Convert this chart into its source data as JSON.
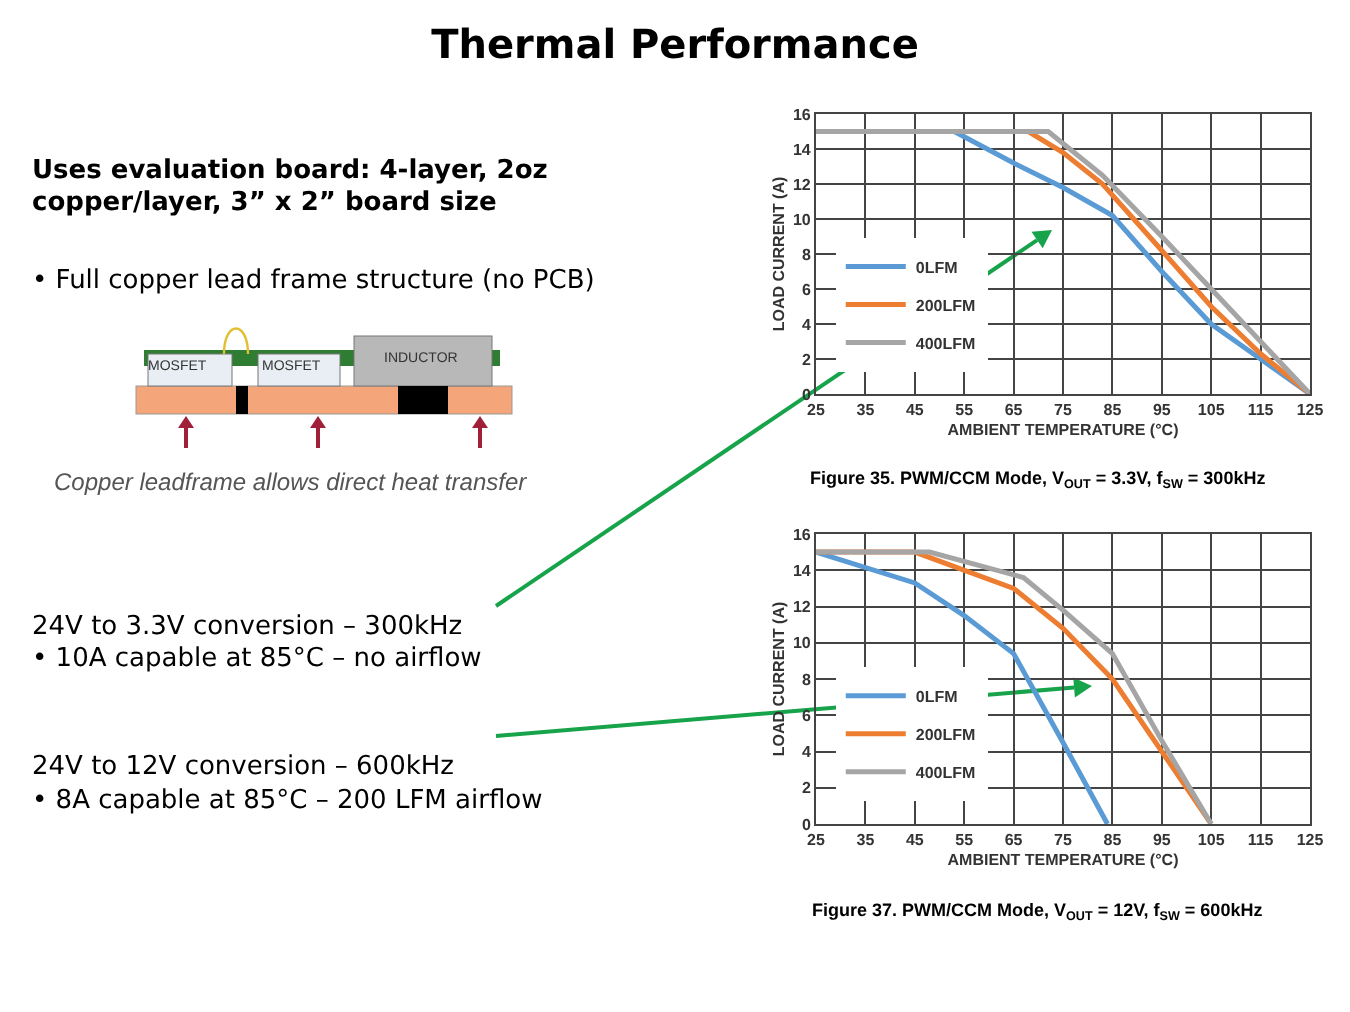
{
  "chart_data": [
    {
      "type": "other",
      "title": "Thermal Performance",
      "annotations": [
        "Uses evaluation board: 4-layer, 2oz copper/layer, 3” x 2” board size",
        "• Full copper lead frame structure (no PCB)",
        "MOSFET",
        "MOSFET",
        "INDUCTOR",
        "Copper leadframe allows direct heat transfer",
        "24V to 3.3V conversion – 300kHz",
        "• 10A capable at 85°C – no airflow",
        "24V to 12V conversion – 600kHz",
        "• 8A capable at 85°C – 200 LFM airflow"
      ]
    },
    {
      "type": "line",
      "xlabel": "AMBIENT TEMPERATURE (°C)",
      "ylabel": "LOAD CURRENT (A)",
      "xlim": [
        25,
        125
      ],
      "xticks": [
        25,
        35,
        45,
        55,
        65,
        75,
        85,
        95,
        105,
        115,
        125
      ],
      "ylim": [
        0,
        16
      ],
      "yticks": [
        0,
        2,
        4,
        6,
        8,
        10,
        12,
        14,
        16
      ],
      "grid": true,
      "legend": "bottom left",
      "marker": "none",
      "line_style": "solid",
      "annotations": [
        "Figure 35. PWM/CCM Mode, V$_{OUT}$ = 3.3V, f$_{SW}$ = 300kHz"
      ],
      "series": [
        {
          "name": "0LFM",
          "color": "#5b9bd5",
          "x": [
            25,
            53,
            65,
            75,
            85,
            95,
            105,
            115,
            125
          ],
          "values": [
            15,
            15,
            13.2,
            11.8,
            10.2,
            7,
            4,
            2,
            0
          ]
        },
        {
          "name": "200LFM",
          "color": "#ed7d31",
          "x": [
            25,
            68,
            75,
            83,
            95,
            105,
            115,
            125
          ],
          "values": [
            15,
            15,
            13.8,
            12,
            8.2,
            5,
            2.3,
            0
          ]
        },
        {
          "name": "400LFM",
          "color": "#a5a5a5",
          "x": [
            25,
            72,
            83,
            95,
            105,
            115,
            125
          ],
          "values": [
            15,
            15,
            12.5,
            9,
            6,
            3,
            0
          ]
        }
      ]
    },
    {
      "type": "line",
      "xlabel": "AMBIENT TEMPERATURE (°C)",
      "ylabel": "LOAD CURRENT (A)",
      "xlim": [
        25,
        125
      ],
      "xticks": [
        25,
        35,
        45,
        55,
        65,
        75,
        85,
        95,
        105,
        115,
        125
      ],
      "ylim": [
        0,
        16
      ],
      "yticks": [
        0,
        2,
        4,
        6,
        8,
        10,
        12,
        14,
        16
      ],
      "grid": true,
      "legend": "bottom left",
      "marker": "none",
      "line_style": "solid",
      "annotations": [
        "Figure 37. PWM/CCM Mode, V$_{OUT}$ = 12V, f$_{SW}$ = 600kHz"
      ],
      "series": [
        {
          "name": "0LFM",
          "color": "#5b9bd5",
          "x": [
            25,
            45,
            55,
            65,
            75,
            84
          ],
          "values": [
            15,
            13.3,
            11.5,
            9.4,
            4.5,
            0
          ]
        },
        {
          "name": "200LFM",
          "color": "#ed7d31",
          "x": [
            25,
            45,
            65,
            75,
            85,
            95,
            105
          ],
          "values": [
            15,
            15,
            13,
            10.8,
            8,
            4,
            0
          ]
        },
        {
          "name": "400LFM",
          "color": "#a5a5a5",
          "x": [
            25,
            48,
            67,
            75,
            85,
            95,
            105
          ],
          "values": [
            15,
            15,
            13.6,
            11.8,
            9.4,
            4.6,
            0
          ]
        }
      ]
    }
  ]
}
